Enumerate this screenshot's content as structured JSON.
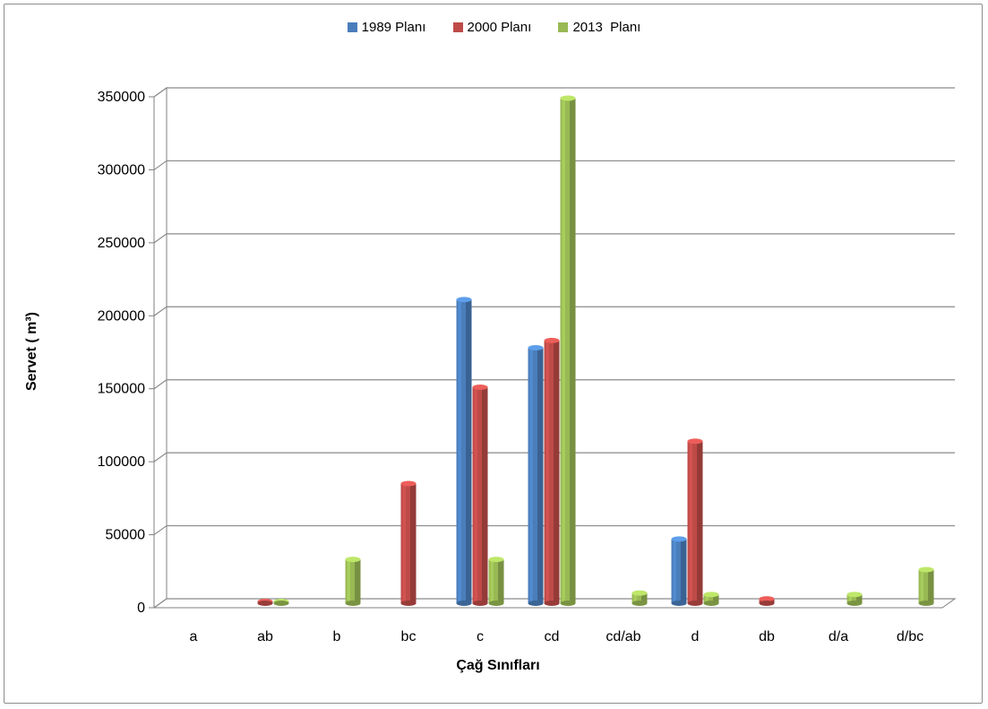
{
  "chart_data": {
    "type": "bar",
    "categories": [
      "a",
      "ab",
      "b",
      "bc",
      "c",
      "cd",
      "cd/ab",
      "d",
      "db",
      "d/a",
      "d/bc"
    ],
    "series": [
      {
        "name": "1989 Planı",
        "color": "#4a7ebb",
        "values": [
          0,
          0,
          0,
          0,
          208000,
          175000,
          0,
          44000,
          0,
          0,
          0
        ]
      },
      {
        "name": "2000 Planı",
        "color": "#be4b48",
        "values": [
          0,
          1000,
          0,
          82000,
          148000,
          180000,
          0,
          111000,
          3000,
          0,
          0
        ]
      },
      {
        "name": "2013  Planı",
        "color": "#98b954",
        "values": [
          0,
          1000,
          30000,
          0,
          30000,
          346000,
          7000,
          6000,
          0,
          6000,
          23000
        ]
      }
    ],
    "xlabel": "Çağ Sınıfları",
    "ylabel": "Servet ( m³)",
    "ylim": [
      0,
      350000
    ],
    "yticks": [
      "0",
      "50000",
      "100000",
      "150000",
      "200000",
      "250000",
      "300000",
      "350000"
    ],
    "grid": true,
    "legend_position": "top"
  }
}
